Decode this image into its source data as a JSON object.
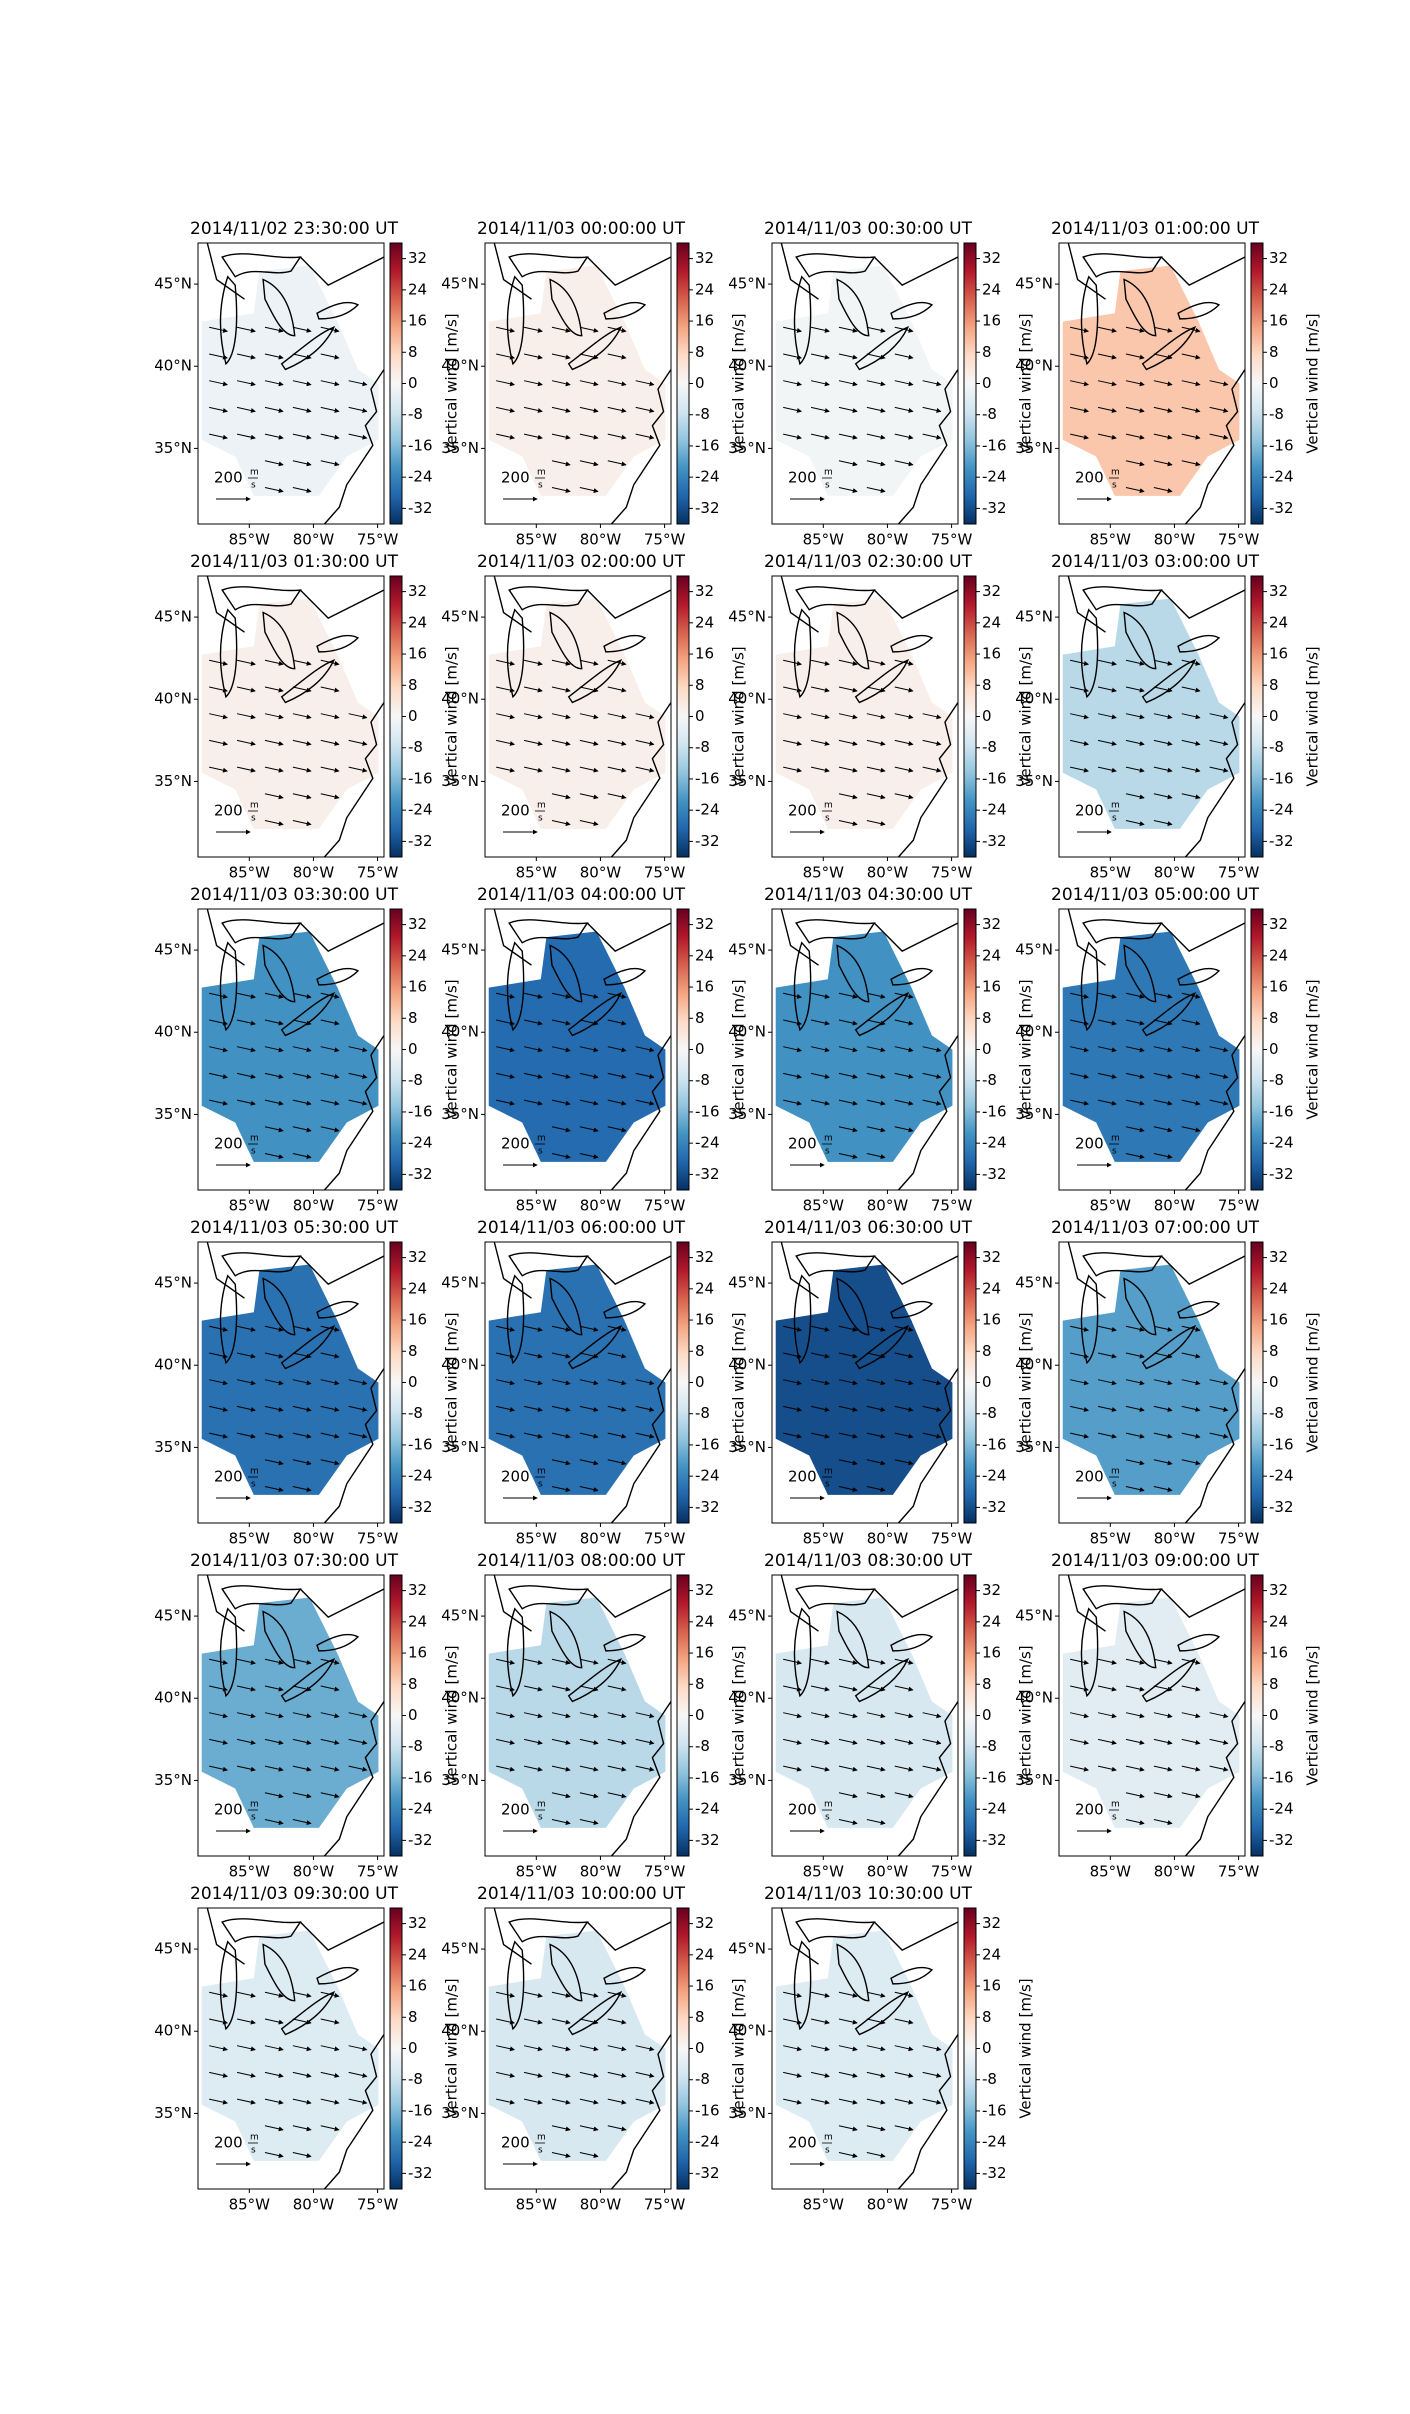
{
  "figure": {
    "colormap": "RdBu_r",
    "colorbar": {
      "label": "Vertical wind [m/s]",
      "lim": [
        -36,
        36
      ],
      "ticks": [
        -32,
        -24,
        -16,
        -8,
        0,
        8,
        16,
        24,
        32
      ]
    },
    "xlim": [
      -89,
      -74.5
    ],
    "ylim": [
      30.4,
      47.5
    ],
    "xticks": [
      {
        "value": -85,
        "label": "85°W"
      },
      {
        "value": -80,
        "label": "80°W"
      },
      {
        "value": -75,
        "label": "75°W"
      }
    ],
    "yticks": [
      {
        "value": 45,
        "label": "45°N"
      },
      {
        "value": 40,
        "label": "40°N"
      },
      {
        "value": 35,
        "label": "35°N"
      }
    ],
    "quiver_key": {
      "value": 200,
      "unit_num": "m",
      "unit_den": "s"
    },
    "panels": [
      {
        "title": "2014/11/02 23:30:00 UT",
        "value": -2
      },
      {
        "title": "2014/11/03 00:00:00 UT",
        "value": 2
      },
      {
        "title": "2014/11/03 00:30:00 UT",
        "value": -1
      },
      {
        "title": "2014/11/03 01:00:00 UT",
        "value": 10
      },
      {
        "title": "2014/11/03 01:30:00 UT",
        "value": 2
      },
      {
        "title": "2014/11/03 02:00:00 UT",
        "value": 2
      },
      {
        "title": "2014/11/03 02:30:00 UT",
        "value": 2
      },
      {
        "title": "2014/11/03 03:00:00 UT",
        "value": -10
      },
      {
        "title": "2014/11/03 03:30:00 UT",
        "value": -22
      },
      {
        "title": "2014/11/03 04:00:00 UT",
        "value": -28
      },
      {
        "title": "2014/11/03 04:30:00 UT",
        "value": -22
      },
      {
        "title": "2014/11/03 05:00:00 UT",
        "value": -26
      },
      {
        "title": "2014/11/03 05:30:00 UT",
        "value": -27
      },
      {
        "title": "2014/11/03 06:00:00 UT",
        "value": -27
      },
      {
        "title": "2014/11/03 06:30:00 UT",
        "value": -32
      },
      {
        "title": "2014/11/03 07:00:00 UT",
        "value": -20
      },
      {
        "title": "2014/11/03 07:30:00 UT",
        "value": -18
      },
      {
        "title": "2014/11/03 08:00:00 UT",
        "value": -10
      },
      {
        "title": "2014/11/03 08:30:00 UT",
        "value": -6
      },
      {
        "title": "2014/11/03 09:00:00 UT",
        "value": -4
      },
      {
        "title": "2014/11/03 09:30:00 UT",
        "value": -5
      },
      {
        "title": "2014/11/03 10:00:00 UT",
        "value": -6
      },
      {
        "title": "2014/11/03 10:30:00 UT",
        "value": -5
      }
    ]
  }
}
